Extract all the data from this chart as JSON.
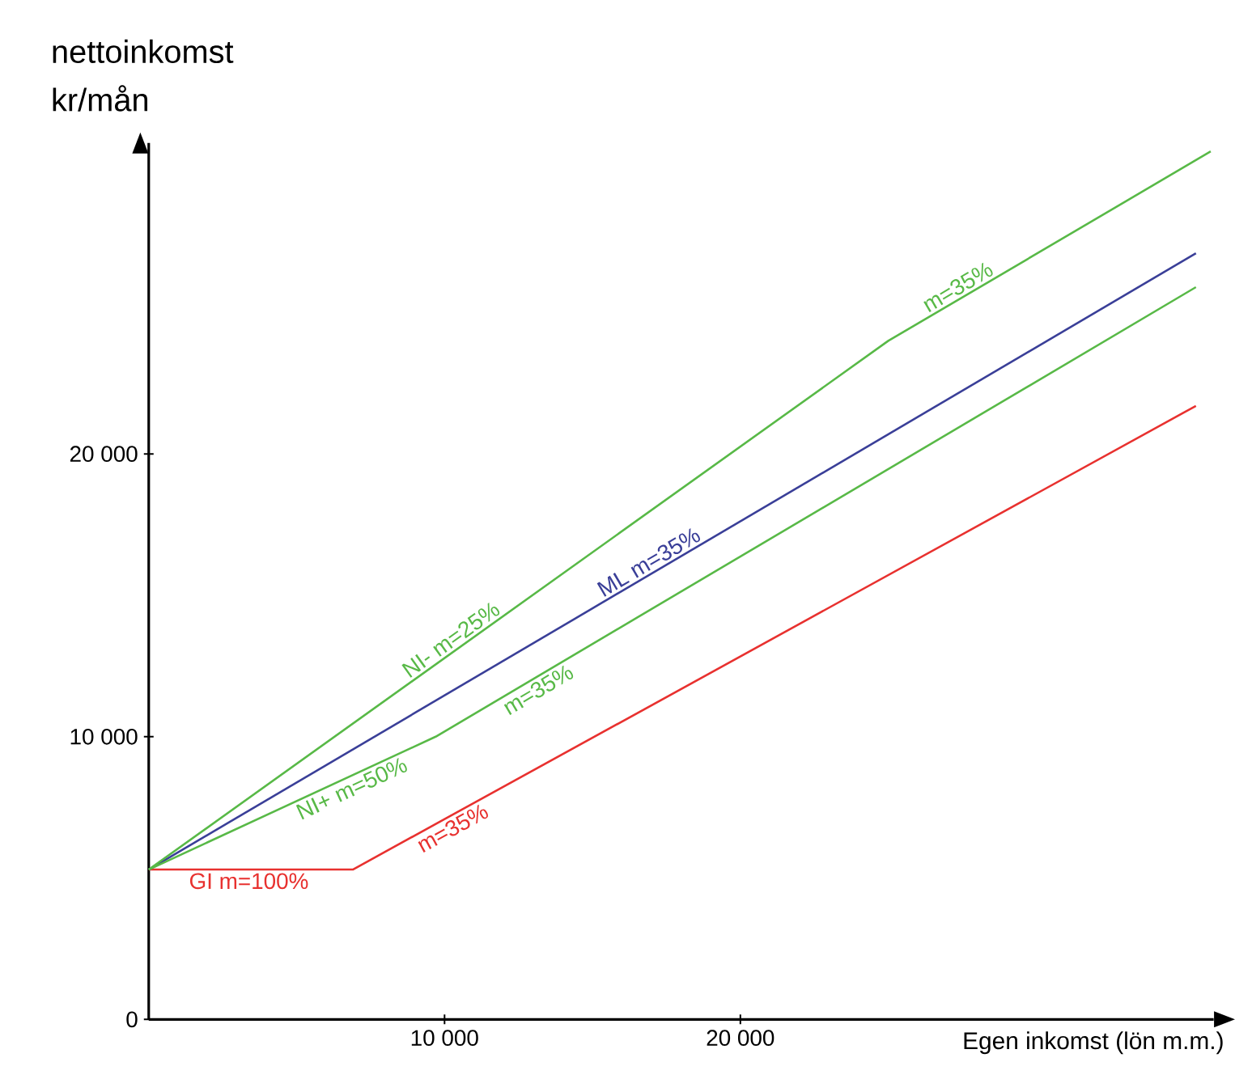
{
  "chart_data": {
    "type": "line",
    "xlabel": "Egen inkomst (lön m.m.)",
    "ylabel": "nettoinkomst kr/mån",
    "series": [
      {
        "color": "#e8312f",
        "x": [
          0,
          6900,
          35400
        ],
        "values": [
          5300,
          5300,
          21700
        ]
      },
      {
        "color": "#3a3f98",
        "x": [
          0,
          35400
        ],
        "values": [
          5300,
          27100
        ]
      },
      {
        "color": "#58b947",
        "x": [
          0,
          25000,
          35900
        ],
        "values": [
          5300,
          24000,
          30700
        ]
      },
      {
        "color": "#58b947",
        "x": [
          0,
          9700,
          35400
        ],
        "values": [
          5300,
          10000,
          25900
        ]
      }
    ],
    "xlim": [
      0,
      36000
    ],
    "ylim": [
      0,
      31000
    ],
    "xticks": [
      {
        "value": 10000,
        "label": "10 000"
      },
      {
        "value": 20000,
        "label": "20 000"
      }
    ],
    "yticks": [
      0,
      {
        "value": 10000,
        "label": "10 000"
      },
      {
        "value": 20000,
        "label": "20 000"
      }
    ],
    "annotations": [
      "GI m=100%",
      "m=35%",
      "NI+ m=50%",
      "m=35%",
      "ML m=35%",
      "NI- m=25%",
      "m=35%"
    ]
  }
}
